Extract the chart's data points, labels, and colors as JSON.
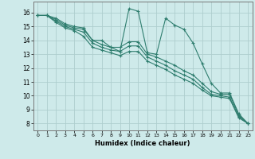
{
  "xlabel": "Humidex (Indice chaleur)",
  "ylabel": "",
  "xlim": [
    -0.5,
    23.5
  ],
  "ylim": [
    7.5,
    16.8
  ],
  "xticks": [
    0,
    1,
    2,
    3,
    4,
    5,
    6,
    7,
    8,
    9,
    10,
    11,
    12,
    13,
    14,
    15,
    16,
    17,
    18,
    19,
    20,
    21,
    22,
    23
  ],
  "yticks": [
    8,
    9,
    10,
    11,
    12,
    13,
    14,
    15,
    16
  ],
  "bg_color": "#ceeaea",
  "grid_color": "#aecece",
  "line_color": "#2e7d6e",
  "lines": [
    [
      15.8,
      15.8,
      15.6,
      15.2,
      15.0,
      14.9,
      14.0,
      14.0,
      13.5,
      13.2,
      16.3,
      16.1,
      13.1,
      13.0,
      15.6,
      15.1,
      14.8,
      13.8,
      12.3,
      10.9,
      10.2,
      10.2,
      8.7,
      8.0
    ],
    [
      15.8,
      15.8,
      15.5,
      15.1,
      14.9,
      14.8,
      14.0,
      13.7,
      13.5,
      13.5,
      13.9,
      13.9,
      13.0,
      12.8,
      12.5,
      12.2,
      11.8,
      11.5,
      10.9,
      10.3,
      10.1,
      10.1,
      8.6,
      8.0
    ],
    [
      15.8,
      15.8,
      15.4,
      15.0,
      14.8,
      14.6,
      13.8,
      13.5,
      13.3,
      13.2,
      13.6,
      13.6,
      12.8,
      12.5,
      12.2,
      11.8,
      11.5,
      11.2,
      10.6,
      10.1,
      10.0,
      9.9,
      8.5,
      8.0
    ],
    [
      15.8,
      15.8,
      15.3,
      14.9,
      14.7,
      14.3,
      13.5,
      13.3,
      13.1,
      12.9,
      13.2,
      13.2,
      12.5,
      12.2,
      11.9,
      11.5,
      11.2,
      10.9,
      10.4,
      10.0,
      9.9,
      9.8,
      8.4,
      8.0
    ]
  ]
}
